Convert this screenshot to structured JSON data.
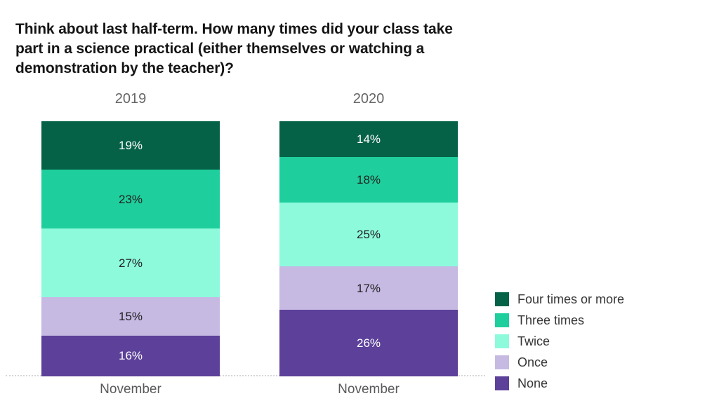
{
  "header": {
    "title_lines": [
      "Think about last half-term. How many times did your class take",
      "part in a science practical (either themselves or watching a",
      "demonstration by the teacher)?"
    ]
  },
  "chart_data": {
    "type": "bar",
    "subtype": "stacked-column-100pct",
    "title": "Think about last half-term. How many times did your class take part in a science practical (either themselves or watching a demonstration by the teacher)?",
    "column_headers": [
      "2019",
      "2020"
    ],
    "x_tick_label": "November",
    "categories": [
      "2019 November",
      "2020 November"
    ],
    "unit": "%",
    "value_range": [
      0,
      100
    ],
    "grid": false,
    "legend_position": "right",
    "stack_order": "top-to-bottom as listed",
    "series": [
      {
        "name": "Four times or more",
        "color": "#056247",
        "label_color": "#ffffff",
        "values": [
          19,
          14
        ]
      },
      {
        "name": "Three times",
        "color": "#1FCE9D",
        "label_color": "#1f1f1f",
        "values": [
          23,
          18
        ]
      },
      {
        "name": "Twice",
        "color": "#8DFADC",
        "label_color": "#1f1f1f",
        "values": [
          27,
          25
        ]
      },
      {
        "name": "Once",
        "color": "#C6B9E2",
        "label_color": "#1f1f1f",
        "values": [
          15,
          17
        ]
      },
      {
        "name": "None",
        "color": "#5C4099",
        "label_color": "#ffffff",
        "values": [
          16,
          26
        ]
      }
    ]
  },
  "colors": {
    "title_text": "#151515",
    "column_header_text": "#666666",
    "x_tick_text": "#595959",
    "legend_text": "#363636",
    "baseline": "#d6d6d6",
    "background": "#ffffff"
  }
}
